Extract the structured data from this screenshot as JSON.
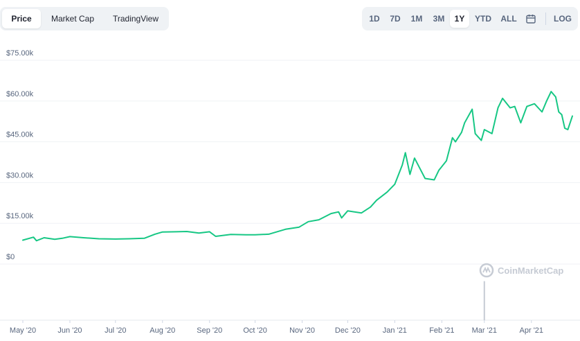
{
  "tabs": [
    {
      "label": "Price",
      "active": true
    },
    {
      "label": "Market Cap",
      "active": false
    },
    {
      "label": "TradingView",
      "active": false
    }
  ],
  "ranges": [
    {
      "label": "1D",
      "active": false
    },
    {
      "label": "7D",
      "active": false
    },
    {
      "label": "1M",
      "active": false
    },
    {
      "label": "3M",
      "active": false
    },
    {
      "label": "1Y",
      "active": true
    },
    {
      "label": "YTD",
      "active": false
    },
    {
      "label": "ALL",
      "active": false
    }
  ],
  "calendar_icon": "calendar-icon",
  "log_label": "LOG",
  "watermark": "CoinMarketCap",
  "colors": {
    "line": "#16c784",
    "grid": "#eff2f5",
    "volume": "#c6cbd4",
    "axis_text": "#58667e"
  },
  "chart_data": {
    "type": "line",
    "title": "",
    "xlabel": "",
    "ylabel": "",
    "y_ticks": [
      "$0",
      "$15.00k",
      "$30.00k",
      "$45.00k",
      "$60.00k",
      "$75.00k"
    ],
    "y_tick_values": [
      0,
      15000,
      30000,
      45000,
      60000,
      75000
    ],
    "ylim": [
      0,
      75000
    ],
    "x_ticks": [
      "May '20",
      "Jun '20",
      "Jul '20",
      "Aug '20",
      "Sep '20",
      "Oct '20",
      "Nov '20",
      "Dec '20",
      "Jan '21",
      "Feb '21",
      "Mar '21",
      "Apr '21"
    ],
    "x_tick_dates": [
      "2020-05-01",
      "2020-06-01",
      "2020-07-01",
      "2020-08-01",
      "2020-09-01",
      "2020-10-01",
      "2020-11-01",
      "2020-12-01",
      "2021-01-01",
      "2021-02-01",
      "2021-03-01",
      "2021-04-01"
    ],
    "xlim": [
      "2020-05-01",
      "2021-04-28"
    ],
    "grid": true,
    "series": [
      {
        "x": [
          "2020-05-01",
          "2020-05-08",
          "2020-05-10",
          "2020-05-15",
          "2020-05-22",
          "2020-05-27",
          "2020-06-01",
          "2020-06-10",
          "2020-06-20",
          "2020-07-01",
          "2020-07-10",
          "2020-07-20",
          "2020-07-27",
          "2020-08-01",
          "2020-08-10",
          "2020-08-17",
          "2020-08-25",
          "2020-09-01",
          "2020-09-05",
          "2020-09-15",
          "2020-09-25",
          "2020-10-01",
          "2020-10-10",
          "2020-10-21",
          "2020-10-30",
          "2020-11-05",
          "2020-11-12",
          "2020-11-20",
          "2020-11-25",
          "2020-11-27",
          "2020-12-01",
          "2020-12-10",
          "2020-12-16",
          "2020-12-20",
          "2020-12-27",
          "2021-01-01",
          "2021-01-06",
          "2021-01-08",
          "2021-01-11",
          "2021-01-14",
          "2021-01-21",
          "2021-01-27",
          "2021-01-30",
          "2021-02-04",
          "2021-02-08",
          "2021-02-10",
          "2021-02-14",
          "2021-02-16",
          "2021-02-21",
          "2021-02-23",
          "2021-02-27",
          "2021-03-01",
          "2021-03-06",
          "2021-03-10",
          "2021-03-13",
          "2021-03-18",
          "2021-03-21",
          "2021-03-25",
          "2021-03-29",
          "2021-04-03",
          "2021-04-08",
          "2021-04-11",
          "2021-04-14",
          "2021-04-17",
          "2021-04-19",
          "2021-04-21",
          "2021-04-23",
          "2021-04-25",
          "2021-04-28"
        ],
        "y": [
          8800,
          9900,
          8600,
          9700,
          9100,
          9500,
          10100,
          9700,
          9300,
          9200,
          9300,
          9500,
          11000,
          11800,
          11900,
          12000,
          11400,
          11900,
          10200,
          10900,
          10800,
          10800,
          11000,
          12800,
          13600,
          15600,
          16300,
          18600,
          19200,
          17000,
          19600,
          18800,
          21000,
          23500,
          26500,
          29400,
          36500,
          41000,
          33000,
          39000,
          31500,
          31000,
          34500,
          38000,
          46500,
          45000,
          48500,
          52000,
          57000,
          48000,
          45500,
          49500,
          48000,
          57500,
          61000,
          57500,
          58000,
          52000,
          58000,
          59000,
          56000,
          60000,
          63500,
          61500,
          56000,
          55000,
          50000,
          49500,
          54500
        ]
      }
    ],
    "volume_spike": {
      "x": "2021-03-01",
      "height_fraction_of_panel": 0.88
    }
  }
}
